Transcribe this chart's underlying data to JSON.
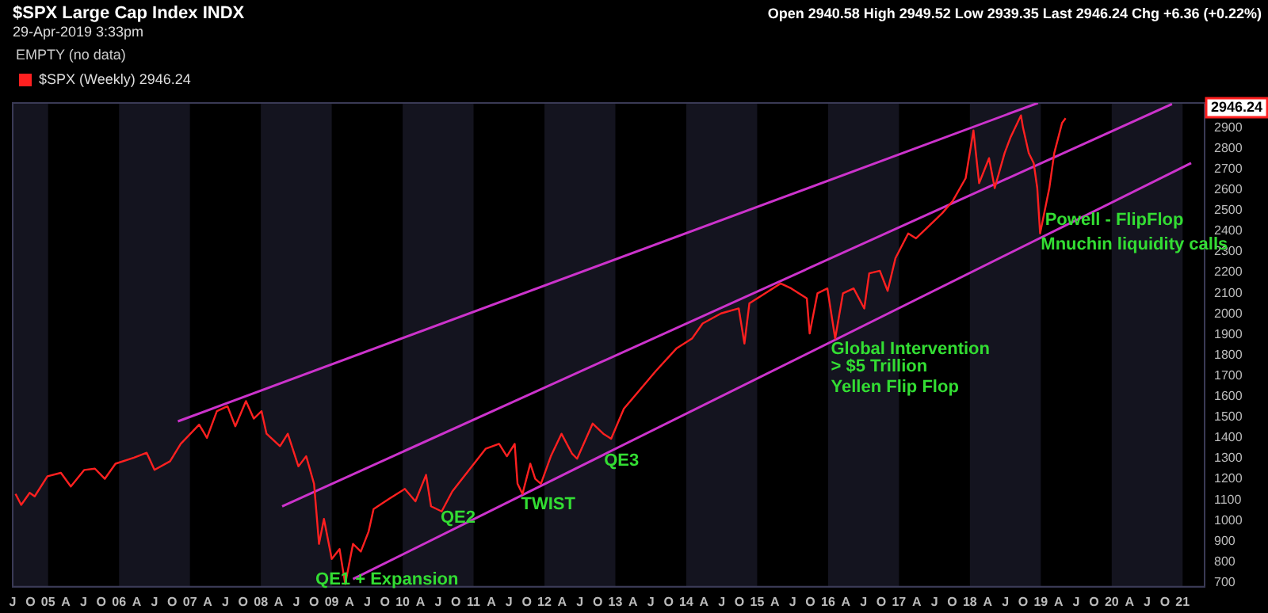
{
  "chart_data": {
    "type": "line",
    "title": "$SPX Large Cap Index INDX",
    "subtitle": "29-Apr-2019 3:33pm",
    "xlim": [
      2004.5,
      2021.31
    ],
    "ylim": [
      680,
      3020
    ],
    "xticks": [
      {
        "value": 2004.5,
        "label": "J"
      },
      {
        "value": 2004.75,
        "label": "O"
      },
      {
        "value": 2005,
        "label": "05"
      },
      {
        "value": 2005.25,
        "label": "A"
      },
      {
        "value": 2005.5,
        "label": "J"
      },
      {
        "value": 2005.75,
        "label": "O"
      },
      {
        "value": 2006,
        "label": "06"
      },
      {
        "value": 2006.25,
        "label": "A"
      },
      {
        "value": 2006.5,
        "label": "J"
      },
      {
        "value": 2006.75,
        "label": "O"
      },
      {
        "value": 2007,
        "label": "07"
      },
      {
        "value": 2007.25,
        "label": "A"
      },
      {
        "value": 2007.5,
        "label": "J"
      },
      {
        "value": 2007.75,
        "label": "O"
      },
      {
        "value": 2008,
        "label": "08"
      },
      {
        "value": 2008.25,
        "label": "A"
      },
      {
        "value": 2008.5,
        "label": "J"
      },
      {
        "value": 2008.75,
        "label": "O"
      },
      {
        "value": 2009,
        "label": "09"
      },
      {
        "value": 2009.25,
        "label": "A"
      },
      {
        "value": 2009.5,
        "label": "J"
      },
      {
        "value": 2009.75,
        "label": "O"
      },
      {
        "value": 2010,
        "label": "10"
      },
      {
        "value": 2010.25,
        "label": "A"
      },
      {
        "value": 2010.5,
        "label": "J"
      },
      {
        "value": 2010.75,
        "label": "O"
      },
      {
        "value": 2011,
        "label": "11"
      },
      {
        "value": 2011.25,
        "label": "A"
      },
      {
        "value": 2011.5,
        "label": "J"
      },
      {
        "value": 2011.75,
        "label": "O"
      },
      {
        "value": 2012,
        "label": "12"
      },
      {
        "value": 2012.25,
        "label": "A"
      },
      {
        "value": 2012.5,
        "label": "J"
      },
      {
        "value": 2012.75,
        "label": "O"
      },
      {
        "value": 2013,
        "label": "13"
      },
      {
        "value": 2013.25,
        "label": "A"
      },
      {
        "value": 2013.5,
        "label": "J"
      },
      {
        "value": 2013.75,
        "label": "O"
      },
      {
        "value": 2014,
        "label": "14"
      },
      {
        "value": 2014.25,
        "label": "A"
      },
      {
        "value": 2014.5,
        "label": "J"
      },
      {
        "value": 2014.75,
        "label": "O"
      },
      {
        "value": 2015,
        "label": "15"
      },
      {
        "value": 2015.25,
        "label": "A"
      },
      {
        "value": 2015.5,
        "label": "J"
      },
      {
        "value": 2015.75,
        "label": "O"
      },
      {
        "value": 2016,
        "label": "16"
      },
      {
        "value": 2016.25,
        "label": "A"
      },
      {
        "value": 2016.5,
        "label": "J"
      },
      {
        "value": 2016.75,
        "label": "O"
      },
      {
        "value": 2017,
        "label": "17"
      },
      {
        "value": 2017.25,
        "label": "A"
      },
      {
        "value": 2017.5,
        "label": "J"
      },
      {
        "value": 2017.75,
        "label": "O"
      },
      {
        "value": 2018,
        "label": "18"
      },
      {
        "value": 2018.25,
        "label": "A"
      },
      {
        "value": 2018.5,
        "label": "J"
      },
      {
        "value": 2018.75,
        "label": "O"
      },
      {
        "value": 2019,
        "label": "19"
      },
      {
        "value": 2019.25,
        "label": "A"
      },
      {
        "value": 2019.5,
        "label": "J"
      },
      {
        "value": 2019.75,
        "label": "O"
      },
      {
        "value": 2020,
        "label": "20"
      },
      {
        "value": 2020.25,
        "label": "A"
      },
      {
        "value": 2020.5,
        "label": "J"
      },
      {
        "value": 2020.75,
        "label": "O"
      },
      {
        "value": 2021,
        "label": "21"
      }
    ],
    "yticks": [
      700,
      800,
      900,
      1000,
      1100,
      1200,
      1300,
      1400,
      1500,
      1600,
      1700,
      1800,
      1900,
      2000,
      2100,
      2200,
      2300,
      2400,
      2500,
      2600,
      2700,
      2800,
      2900
    ],
    "grid": false,
    "legend": "top left",
    "marker": "none",
    "line_style": "solid",
    "series": [
      {
        "name": "$SPX (Weekly) 2946.24",
        "color": "#ff2020",
        "x": [
          2004.54,
          2004.62,
          2004.74,
          2004.81,
          2004.99,
          2005.18,
          2005.32,
          2005.51,
          2005.66,
          2005.8,
          2005.95,
          2006.21,
          2006.39,
          2006.5,
          2006.72,
          2006.87,
          2007.13,
          2007.24,
          2007.38,
          2007.53,
          2007.64,
          2007.79,
          2007.9,
          2008.01,
          2008.08,
          2008.27,
          2008.38,
          2008.53,
          2008.64,
          2008.75,
          2008.78,
          2008.82,
          2008.89,
          2009.0,
          2009.11,
          2009.19,
          2009.3,
          2009.41,
          2009.52,
          2009.59,
          2009.81,
          2010.03,
          2010.18,
          2010.33,
          2010.4,
          2010.55,
          2010.7,
          2010.92,
          2011.17,
          2011.36,
          2011.47,
          2011.58,
          2011.62,
          2011.69,
          2011.8,
          2011.87,
          2011.95,
          2012.09,
          2012.24,
          2012.39,
          2012.46,
          2012.68,
          2012.83,
          2012.94,
          2013.12,
          2013.57,
          2013.86,
          2014.08,
          2014.23,
          2014.49,
          2014.74,
          2014.82,
          2014.89,
          2015.11,
          2015.33,
          2015.48,
          2015.7,
          2015.74,
          2015.85,
          2015.99,
          2016.1,
          2016.21,
          2016.36,
          2016.51,
          2016.58,
          2016.73,
          2016.84,
          2016.95,
          2017.13,
          2017.24,
          2017.39,
          2017.61,
          2017.76,
          2017.94,
          2018.05,
          2018.13,
          2018.27,
          2018.35,
          2018.49,
          2018.57,
          2018.72,
          2018.75,
          2018.83,
          2018.9,
          2018.95,
          2018.99,
          2019.12,
          2019.19,
          2019.3,
          2019.35
        ],
        "values": [
          1129,
          1076,
          1134,
          1117,
          1214,
          1231,
          1165,
          1245,
          1251,
          1202,
          1275,
          1304,
          1328,
          1245,
          1287,
          1371,
          1464,
          1400,
          1529,
          1553,
          1456,
          1578,
          1493,
          1529,
          1420,
          1360,
          1420,
          1262,
          1311,
          1178,
          1056,
          887,
          1008,
          814,
          862,
          693,
          887,
          850,
          947,
          1056,
          1105,
          1153,
          1093,
          1221,
          1069,
          1044,
          1141,
          1238,
          1347,
          1371,
          1311,
          1371,
          1178,
          1129,
          1275,
          1202,
          1178,
          1311,
          1420,
          1323,
          1299,
          1469,
          1420,
          1396,
          1541,
          1723,
          1832,
          1880,
          1953,
          2002,
          2026,
          1856,
          2051,
          2099,
          2147,
          2123,
          2075,
          1905,
          2099,
          2123,
          1880,
          2099,
          2123,
          2026,
          2196,
          2208,
          2111,
          2269,
          2389,
          2365,
          2414,
          2487,
          2547,
          2656,
          2887,
          2632,
          2753,
          2608,
          2778,
          2851,
          2960,
          2899,
          2778,
          2729,
          2608,
          2389,
          2608,
          2778,
          2923,
          2946
        ]
      },
      {
        "color": "#cc33cc",
        "x": [
          2006.83,
          2018.96
        ],
        "values": [
          1480,
          3020
        ]
      },
      {
        "color": "#cc33cc",
        "x": [
          2008.3,
          2020.85
        ],
        "values": [
          1069,
          3015
        ]
      },
      {
        "color": "#cc33cc",
        "x": [
          2009.3,
          2021.12
        ],
        "values": [
          717,
          2729
        ]
      }
    ],
    "bands": [
      {
        "axis": "x",
        "from": 2004.5,
        "to": 2005,
        "color": "#14141f"
      },
      {
        "axis": "x",
        "from": 2006,
        "to": 2007,
        "color": "#14141f"
      },
      {
        "axis": "x",
        "from": 2008,
        "to": 2009,
        "color": "#14141f"
      },
      {
        "axis": "x",
        "from": 2010,
        "to": 2011,
        "color": "#14141f"
      },
      {
        "axis": "x",
        "from": 2012,
        "to": 2013,
        "color": "#14141f"
      },
      {
        "axis": "x",
        "from": 2014,
        "to": 2015,
        "color": "#14141f"
      },
      {
        "axis": "x",
        "from": 2016,
        "to": 2017,
        "color": "#14141f"
      },
      {
        "axis": "x",
        "from": 2018,
        "to": 2019,
        "color": "#14141f"
      },
      {
        "axis": "x",
        "from": 2020,
        "to": 2021,
        "color": "#14141f"
      }
    ],
    "annotations": [
      "Open 2940.58 High 2949.52 Low 2939.35 Last 2946.24 Chg +6.36 (+0.22%)",
      "EMPTY (no data)",
      "2946.24",
      {
        "text": "QE1 + Expansion",
        "x": 2008.77,
        "y": 715
      },
      "QE2",
      {
        "text": "TWIST",
        "x": 2011.67,
        "y": 1078
      },
      {
        "text": "QE3",
        "x": 2012.84,
        "y": 1290
      },
      {
        "text": "Global Intervention",
        "x": 2016.04,
        "y": 1827
      },
      {
        "text": "> $5 Trillion",
        "x": 2016.04,
        "y": 1745
      },
      {
        "text": "Yellen Flip Flop",
        "x": 2016.04,
        "y": 1643
      },
      {
        "text": "Powell - FlipFlop",
        "x": 2019.06,
        "y": 2455
      },
      {
        "text": "Mnuchin liquidity calls",
        "x": 2019.0,
        "y": 2334
      }
    ]
  }
}
